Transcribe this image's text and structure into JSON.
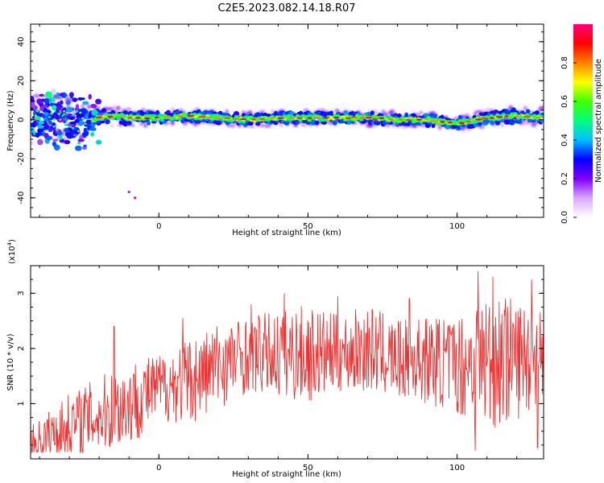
{
  "figure_title": "C2E5.2023.082.14.18.R07",
  "chart_data": [
    {
      "type": "heatmap",
      "xlabel": "Height of straight line (km)",
      "ylabel": "Frequency (Hz)",
      "xlim": [
        -43,
        129
      ],
      "ylim": [
        -50,
        49
      ],
      "xticks": [
        0,
        50,
        100
      ],
      "yticks": [
        -40,
        -20,
        0,
        20,
        40
      ],
      "xticklabels": [
        "0",
        "50",
        "100"
      ],
      "yticklabels": [
        "-40",
        "-20",
        "0",
        "20",
        "40"
      ],
      "colorbar": {
        "label": "Normalized spectral amplitude",
        "range": [
          0,
          1
        ],
        "ticks": [
          0.0,
          0.2,
          0.4,
          0.6,
          0.8
        ],
        "ticklabels": [
          "0.0",
          "0.2",
          "0.4",
          "0.6",
          "0.8"
        ],
        "colors": [
          "#ffffff",
          "#d9a8ff",
          "#8000ff",
          "#0000ff",
          "#00c0ff",
          "#00ff80",
          "#40ff00",
          "#ffff00",
          "#ff8000",
          "#ff0000",
          "#ff0080"
        ]
      },
      "ridge_center": [
        [
          -43,
          1
        ],
        [
          -35,
          2
        ],
        [
          -25,
          -2
        ],
        [
          -20,
          1
        ],
        [
          -15,
          2
        ],
        [
          -10,
          1
        ],
        [
          0,
          1
        ],
        [
          10,
          2
        ],
        [
          20,
          1
        ],
        [
          30,
          0
        ],
        [
          40,
          1
        ],
        [
          50,
          1
        ],
        [
          60,
          1
        ],
        [
          70,
          1
        ],
        [
          80,
          0
        ],
        [
          90,
          0
        ],
        [
          95,
          -1
        ],
        [
          100,
          -2
        ],
        [
          110,
          1
        ],
        [
          120,
          2
        ],
        [
          129,
          1
        ]
      ],
      "ridge_halfwidth": [
        [
          -43,
          10
        ],
        [
          -30,
          10
        ],
        [
          -20,
          4
        ],
        [
          0,
          3
        ],
        [
          50,
          3
        ],
        [
          100,
          3
        ],
        [
          129,
          4
        ]
      ],
      "scatter_cluster": {
        "x": [
          -43,
          -20
        ],
        "y": [
          -15,
          13
        ]
      },
      "outlier_points": [
        [
          -10,
          -37
        ],
        [
          -8,
          -40
        ]
      ]
    },
    {
      "type": "line",
      "xlabel": "Height of straight line (km)",
      "ylabel": "SNR (10 * v/v)",
      "y_multiplier": "(x10",
      "y_multiplier_exp": "4",
      "xlim": [
        -43,
        129
      ],
      "ylim": [
        0,
        3.5
      ],
      "xticks": [
        0,
        50,
        100
      ],
      "yticks": [
        1,
        2,
        3
      ],
      "xticklabels": [
        "0",
        "50",
        "100"
      ],
      "yticklabels": [
        "1",
        "2",
        "3"
      ],
      "color": "#ee3333",
      "envelope": [
        {
          "x": -43,
          "mean": 0.25,
          "amp": 0.35
        },
        {
          "x": -30,
          "mean": 0.6,
          "amp": 0.6
        },
        {
          "x": -20,
          "mean": 0.8,
          "amp": 0.7
        },
        {
          "x": -10,
          "mean": 1.0,
          "amp": 0.8
        },
        {
          "x": 0,
          "mean": 1.3,
          "amp": 0.6
        },
        {
          "x": 10,
          "mean": 1.4,
          "amp": 0.8
        },
        {
          "x": 20,
          "mean": 1.7,
          "amp": 0.8
        },
        {
          "x": 30,
          "mean": 1.9,
          "amp": 0.7
        },
        {
          "x": 40,
          "mean": 1.9,
          "amp": 0.8
        },
        {
          "x": 50,
          "mean": 1.9,
          "amp": 0.9
        },
        {
          "x": 60,
          "mean": 1.9,
          "amp": 0.7
        },
        {
          "x": 70,
          "mean": 2.0,
          "amp": 0.8
        },
        {
          "x": 80,
          "mean": 1.8,
          "amp": 0.7
        },
        {
          "x": 90,
          "mean": 1.8,
          "amp": 0.8
        },
        {
          "x": 100,
          "mean": 1.7,
          "amp": 0.9
        },
        {
          "x": 110,
          "mean": 1.8,
          "amp": 1.3
        },
        {
          "x": 120,
          "mean": 1.8,
          "amp": 1.1
        },
        {
          "x": 129,
          "mean": 1.9,
          "amp": 0.9
        }
      ],
      "spikes": [
        {
          "x": -15,
          "y": 2.4
        },
        {
          "x": 8,
          "y": 2.55
        },
        {
          "x": 31,
          "y": 2.8
        },
        {
          "x": 42,
          "y": 3.0
        },
        {
          "x": 60,
          "y": 2.95
        },
        {
          "x": 84,
          "y": 2.9
        },
        {
          "x": 107,
          "y": 3.4
        },
        {
          "x": 112,
          "y": 3.3
        },
        {
          "x": 117,
          "y": 2.75
        },
        {
          "x": 125,
          "y": 3.25
        },
        {
          "x": 106,
          "y": 0.15
        },
        {
          "x": 127,
          "y": 0.2
        }
      ]
    }
  ]
}
